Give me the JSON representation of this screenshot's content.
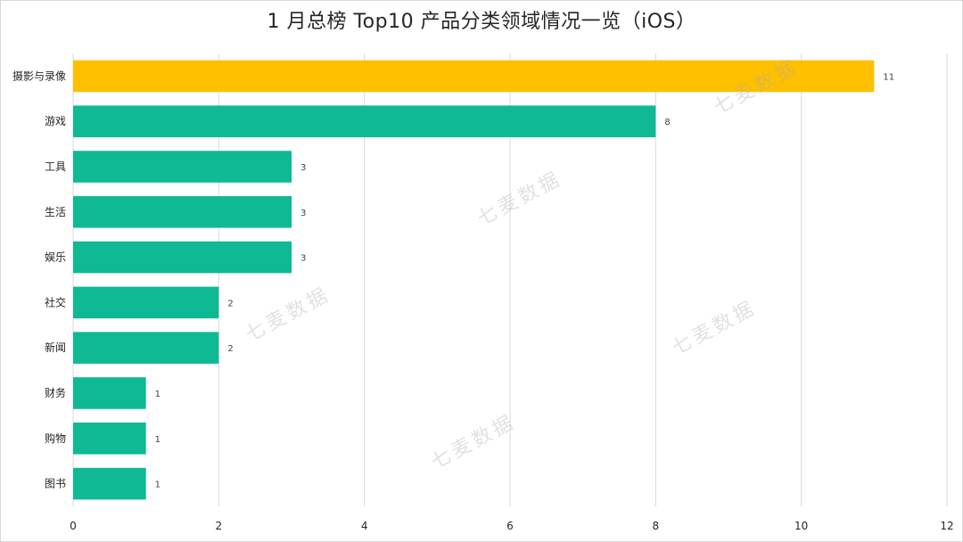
{
  "title": "1 月总榜 Top10 产品分类领域情况一览（iOS）",
  "watermark_text": "七麦数据",
  "colors": {
    "highlight": "#FFC000",
    "bar": "#0EB994",
    "grid": "#D9D9D9"
  },
  "chart_data": {
    "type": "bar",
    "orientation": "horizontal",
    "title": "1 月总榜 Top10 产品分类领域情况一览（iOS）",
    "categories": [
      "摄影与录像",
      "游戏",
      "工具",
      "生活",
      "娱乐",
      "社交",
      "新闻",
      "财务",
      "购物",
      "图书"
    ],
    "values": [
      11,
      8,
      3,
      3,
      3,
      2,
      2,
      1,
      1,
      1
    ],
    "highlight_category": "摄影与录像",
    "xlim": [
      0,
      12
    ],
    "xticks": [
      0,
      2,
      4,
      6,
      8,
      10,
      12
    ],
    "grid": "vertical",
    "data_labels": true,
    "legend": "none",
    "xlabel": "",
    "ylabel": ""
  }
}
